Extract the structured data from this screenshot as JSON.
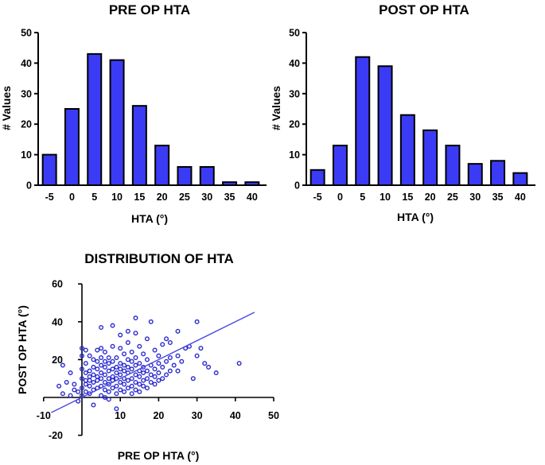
{
  "colors": {
    "bar_fill": "#3b3bf5",
    "bar_stroke": "#000000",
    "scatter_point": "#2a2acf",
    "regression_line": "#4a4ae0",
    "axis": "#000000"
  },
  "chart_data": [
    {
      "type": "bar",
      "title": "PRE OP HTA",
      "xlabel": "HTA  (°)",
      "ylabel": "# Values",
      "categories": [
        "-5",
        "0",
        "5",
        "10",
        "15",
        "20",
        "25",
        "30",
        "35",
        "40"
      ],
      "values": [
        10,
        25,
        43,
        41,
        26,
        13,
        6,
        6,
        1,
        1
      ],
      "ylim": [
        0,
        50
      ],
      "yticks": [
        "0",
        "10",
        "20",
        "30",
        "40",
        "50"
      ]
    },
    {
      "type": "bar",
      "title": "POST OP HTA",
      "xlabel": "HTA  (°)",
      "ylabel": "# Values",
      "categories": [
        "-5",
        "0",
        "5",
        "10",
        "15",
        "20",
        "25",
        "30",
        "35",
        "40"
      ],
      "values": [
        5,
        13,
        42,
        39,
        23,
        18,
        13,
        7,
        8,
        4
      ],
      "ylim": [
        0,
        50
      ],
      "yticks": [
        "0",
        "10",
        "20",
        "30",
        "40",
        "50"
      ]
    },
    {
      "type": "scatter",
      "title": "DISTRIBUTION OF HTA",
      "xlabel": "PRE OP HTA (°)",
      "ylabel": "POST OP HTA (°)",
      "xlim": [
        -10,
        50
      ],
      "ylim": [
        -20,
        60
      ],
      "xticks": [
        "-10",
        "10",
        "20",
        "30",
        "40",
        "50"
      ],
      "yticks": [
        "-20",
        "20",
        "40",
        "60"
      ],
      "regression_line": {
        "x": [
          -8,
          45
        ],
        "y": [
          -8,
          45
        ]
      },
      "points": [
        [
          -6,
          6
        ],
        [
          -5,
          2
        ],
        [
          -5,
          17
        ],
        [
          -4,
          8
        ],
        [
          -3,
          1
        ],
        [
          -3,
          13
        ],
        [
          -2,
          4
        ],
        [
          -2,
          7
        ],
        [
          -1,
          3
        ],
        [
          -1,
          -2
        ],
        [
          0,
          1
        ],
        [
          0,
          5
        ],
        [
          0,
          10
        ],
        [
          0,
          15
        ],
        [
          0,
          22
        ],
        [
          0,
          26
        ],
        [
          1,
          3
        ],
        [
          1,
          7
        ],
        [
          1,
          9
        ],
        [
          1,
          13
        ],
        [
          1,
          18
        ],
        [
          1,
          25
        ],
        [
          2,
          2
        ],
        [
          2,
          6
        ],
        [
          2,
          9
        ],
        [
          2,
          11
        ],
        [
          2,
          14
        ],
        [
          2,
          22
        ],
        [
          3,
          4
        ],
        [
          3,
          8
        ],
        [
          3,
          12
        ],
        [
          3,
          16
        ],
        [
          3,
          20
        ],
        [
          3,
          -4
        ],
        [
          4,
          5
        ],
        [
          4,
          9
        ],
        [
          4,
          11
        ],
        [
          4,
          15
        ],
        [
          4,
          19
        ],
        [
          4,
          25
        ],
        [
          5,
          1
        ],
        [
          5,
          6
        ],
        [
          5,
          10
        ],
        [
          5,
          13
        ],
        [
          5,
          17
        ],
        [
          5,
          21
        ],
        [
          5,
          26
        ],
        [
          5,
          37
        ],
        [
          6,
          0
        ],
        [
          6,
          4
        ],
        [
          6,
          8
        ],
        [
          6,
          12
        ],
        [
          6,
          16
        ],
        [
          6,
          19
        ],
        [
          6,
          24
        ],
        [
          7,
          3
        ],
        [
          7,
          7
        ],
        [
          7,
          10
        ],
        [
          7,
          14
        ],
        [
          7,
          18
        ],
        [
          7,
          21
        ],
        [
          7,
          -1
        ],
        [
          8,
          5
        ],
        [
          8,
          9
        ],
        [
          8,
          11
        ],
        [
          8,
          15
        ],
        [
          8,
          19
        ],
        [
          8,
          27
        ],
        [
          8,
          38
        ],
        [
          9,
          2
        ],
        [
          9,
          6
        ],
        [
          9,
          10
        ],
        [
          9,
          13
        ],
        [
          9,
          16
        ],
        [
          9,
          21
        ],
        [
          9,
          -6
        ],
        [
          10,
          4
        ],
        [
          10,
          8
        ],
        [
          10,
          12
        ],
        [
          10,
          15
        ],
        [
          10,
          18
        ],
        [
          10,
          26
        ],
        [
          10,
          33
        ],
        [
          11,
          3
        ],
        [
          11,
          7
        ],
        [
          11,
          10
        ],
        [
          11,
          14
        ],
        [
          11,
          17
        ],
        [
          11,
          23
        ],
        [
          12,
          5
        ],
        [
          12,
          9
        ],
        [
          12,
          13
        ],
        [
          12,
          16
        ],
        [
          12,
          20
        ],
        [
          12,
          29
        ],
        [
          12,
          35
        ],
        [
          13,
          2
        ],
        [
          13,
          6
        ],
        [
          13,
          10
        ],
        [
          13,
          15
        ],
        [
          13,
          19
        ],
        [
          13,
          24
        ],
        [
          14,
          4
        ],
        [
          14,
          8
        ],
        [
          14,
          12
        ],
        [
          14,
          17
        ],
        [
          14,
          21
        ],
        [
          14,
          42
        ],
        [
          14,
          34
        ],
        [
          15,
          3
        ],
        [
          15,
          7
        ],
        [
          15,
          11
        ],
        [
          15,
          14
        ],
        [
          15,
          18
        ],
        [
          15,
          27
        ],
        [
          16,
          6
        ],
        [
          16,
          9
        ],
        [
          16,
          13
        ],
        [
          16,
          16
        ],
        [
          16,
          23
        ],
        [
          17,
          5
        ],
        [
          17,
          10
        ],
        [
          17,
          14
        ],
        [
          17,
          20
        ],
        [
          17,
          31
        ],
        [
          18,
          8
        ],
        [
          18,
          12
        ],
        [
          18,
          17
        ],
        [
          18,
          40
        ],
        [
          19,
          7
        ],
        [
          19,
          11
        ],
        [
          19,
          15
        ],
        [
          19,
          25
        ],
        [
          20,
          9
        ],
        [
          20,
          13
        ],
        [
          20,
          18
        ],
        [
          20,
          22
        ],
        [
          21,
          10
        ],
        [
          21,
          16
        ],
        [
          21,
          28
        ],
        [
          22,
          12
        ],
        [
          22,
          19
        ],
        [
          22,
          31
        ],
        [
          23,
          14
        ],
        [
          23,
          21
        ],
        [
          23,
          29
        ],
        [
          24,
          17
        ],
        [
          25,
          14
        ],
        [
          25,
          22
        ],
        [
          25,
          35
        ],
        [
          26,
          19
        ],
        [
          27,
          26
        ],
        [
          28,
          27
        ],
        [
          29,
          10
        ],
        [
          30,
          22
        ],
        [
          30,
          40
        ],
        [
          31,
          26
        ],
        [
          32,
          18
        ],
        [
          33,
          16
        ],
        [
          35,
          13
        ],
        [
          41,
          18
        ]
      ]
    }
  ]
}
